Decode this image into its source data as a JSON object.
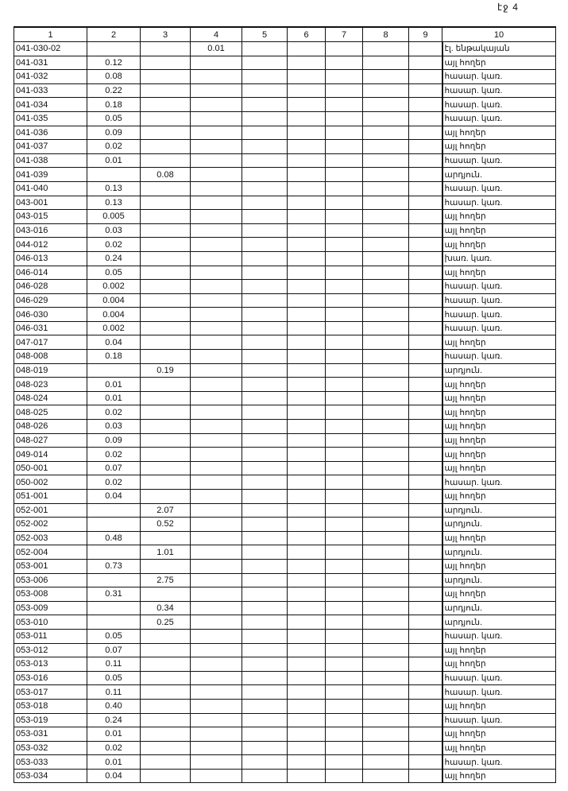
{
  "page_label": "էջ 4",
  "headers": [
    "1",
    "2",
    "3",
    "4",
    "5",
    "6",
    "7",
    "8",
    "9",
    "10"
  ],
  "rows": [
    [
      "041-030-02",
      "",
      "",
      "0.01",
      "էլ. ենթակայան"
    ],
    [
      "041-031",
      "0.12",
      "",
      "",
      "այլ հողեր"
    ],
    [
      "041-032",
      "0.08",
      "",
      "",
      "հասար. կառ."
    ],
    [
      "041-033",
      "0.22",
      "",
      "",
      "հասար. կառ."
    ],
    [
      "041-034",
      "0.18",
      "",
      "",
      "հասար. կառ."
    ],
    [
      "041-035",
      "0.05",
      "",
      "",
      "հասար. կառ."
    ],
    [
      "041-036",
      "0.09",
      "",
      "",
      "այլ հողեր"
    ],
    [
      "041-037",
      "0.02",
      "",
      "",
      "այլ հողեր"
    ],
    [
      "041-038",
      "0.01",
      "",
      "",
      "հասար. կառ."
    ],
    [
      "041-039",
      "",
      "0.08",
      "",
      "արդյուն."
    ],
    [
      "041-040",
      "0.13",
      "",
      "",
      "հասար. կառ."
    ],
    [
      "043-001",
      "0.13",
      "",
      "",
      "հասար. կառ."
    ],
    [
      "043-015",
      "0.005",
      "",
      "",
      "այլ հողեր"
    ],
    [
      "043-016",
      "0.03",
      "",
      "",
      "այլ հողեր"
    ],
    [
      "044-012",
      "0.02",
      "",
      "",
      "այլ հողեր"
    ],
    [
      "046-013",
      "0.24",
      "",
      "",
      "խառ. կառ."
    ],
    [
      "046-014",
      "0.05",
      "",
      "",
      "այլ հողեր"
    ],
    [
      "046-028",
      "0.002",
      "",
      "",
      "հասար. կառ."
    ],
    [
      "046-029",
      "0.004",
      "",
      "",
      "հասար. կառ."
    ],
    [
      "046-030",
      "0.004",
      "",
      "",
      "հասար. կառ."
    ],
    [
      "046-031",
      "0.002",
      "",
      "",
      "հասար. կառ."
    ],
    [
      "047-017",
      "0.04",
      "",
      "",
      "այլ հողեր"
    ],
    [
      "048-008",
      "0.18",
      "",
      "",
      "հասար. կառ."
    ],
    [
      "048-019",
      "",
      "0.19",
      "",
      "արդյուն."
    ],
    [
      "048-023",
      "0.01",
      "",
      "",
      "այլ հողեր"
    ],
    [
      "048-024",
      "0.01",
      "",
      "",
      "այլ հողեր"
    ],
    [
      "048-025",
      "0.02",
      "",
      "",
      "այլ հողեր"
    ],
    [
      "048-026",
      "0.03",
      "",
      "",
      "այլ հողեր"
    ],
    [
      "048-027",
      "0.09",
      "",
      "",
      "այլ հողեր"
    ],
    [
      "049-014",
      "0.02",
      "",
      "",
      "այլ հողեր"
    ],
    [
      "050-001",
      "0.07",
      "",
      "",
      "այլ հողեր"
    ],
    [
      "050-002",
      "0.02",
      "",
      "",
      "հասար. կառ."
    ],
    [
      "051-001",
      "0.04",
      "",
      "",
      "այլ հողեր"
    ],
    [
      "052-001",
      "",
      "2.07",
      "",
      "արդյուն."
    ],
    [
      "052-002",
      "",
      "0.52",
      "",
      "արդյուն."
    ],
    [
      "052-003",
      "0.48",
      "",
      "",
      "այլ հողեր"
    ],
    [
      "052-004",
      "",
      "1.01",
      "",
      "արդյուն."
    ],
    [
      "053-001",
      "0.73",
      "",
      "",
      "այլ հողեր"
    ],
    [
      "053-006",
      "",
      "2.75",
      "",
      "արդյուն."
    ],
    [
      "053-008",
      "0.31",
      "",
      "",
      "այլ հողեր"
    ],
    [
      "053-009",
      "",
      "0.34",
      "",
      "արդյուն."
    ],
    [
      "053-010",
      "",
      "0.25",
      "",
      "արդյուն."
    ],
    [
      "053-011",
      "0.05",
      "",
      "",
      "հասար. կառ."
    ],
    [
      "053-012",
      "0.07",
      "",
      "",
      "այլ հողեր"
    ],
    [
      "053-013",
      "0.11",
      "",
      "",
      "այլ հողեր"
    ],
    [
      "053-016",
      "0.05",
      "",
      "",
      "հասար. կառ."
    ],
    [
      "053-017",
      "0.11",
      "",
      "",
      "հասար. կառ."
    ],
    [
      "053-018",
      "0.40",
      "",
      "",
      "այլ հողեր"
    ],
    [
      "053-019",
      "0.24",
      "",
      "",
      "հասար. կառ."
    ],
    [
      "053-031",
      "0.01",
      "",
      "",
      "այլ հողեր"
    ],
    [
      "053-032",
      "0.02",
      "",
      "",
      "այլ հողեր"
    ],
    [
      "053-033",
      "0.01",
      "",
      "",
      "հասար. կառ."
    ],
    [
      "053-034",
      "0.04",
      "",
      "",
      "այլ հողեր"
    ]
  ]
}
